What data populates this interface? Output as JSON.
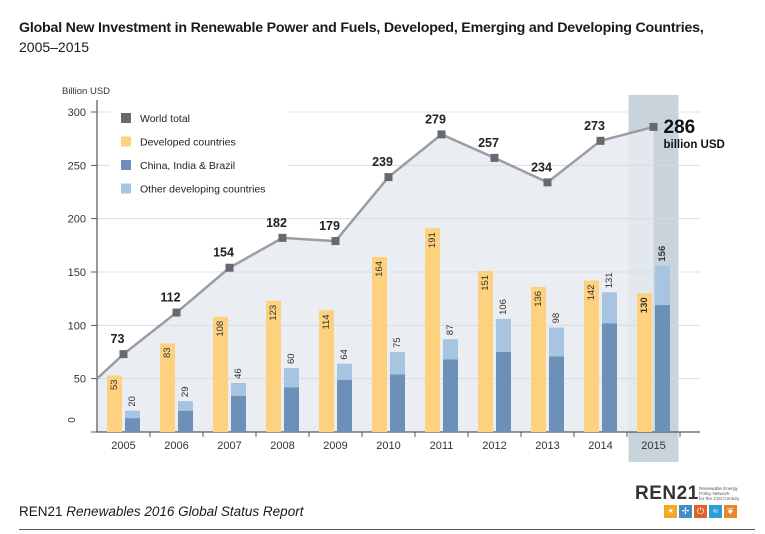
{
  "title": "Global New Investment in Renewable Power and Fuels, Developed, Emerging and Developing Countries,",
  "subtitle": "2005–2015",
  "source": {
    "org": "REN21",
    "report": "Renewables 2016 Global Status Report"
  },
  "logo": {
    "name": "REN21",
    "tagline": [
      "Renewable Energy",
      "Policy Network",
      "for the 21st Century"
    ],
    "icons": [
      {
        "name": "sun-icon",
        "glyph": "☀",
        "color": "#f5a623"
      },
      {
        "name": "wind-icon",
        "glyph": "✢",
        "color": "#3f8fc6"
      },
      {
        "name": "power-icon",
        "glyph": "⏻",
        "color": "#e0612b"
      },
      {
        "name": "water-icon",
        "glyph": "≈",
        "color": "#2aa0d6"
      },
      {
        "name": "leaf-icon",
        "glyph": "❦",
        "color": "#e8862c"
      }
    ]
  },
  "chart_data": {
    "type": "bar",
    "ylabel": "Billion USD",
    "ylim": [
      0,
      300
    ],
    "yticks": [
      0,
      50,
      100,
      150,
      200,
      250,
      300
    ],
    "ytick_labels": [
      "0",
      "50",
      "100",
      "150",
      "200",
      "250",
      "300"
    ],
    "categories": [
      "2005",
      "2006",
      "2007",
      "2008",
      "2009",
      "2010",
      "2011",
      "2012",
      "2013",
      "2014",
      "2015"
    ],
    "highlight_category": "2015",
    "legend_position": "top-left",
    "series": [
      {
        "name": "World total",
        "type": "line",
        "color": "#666a70",
        "values": [
          73,
          112,
          154,
          182,
          179,
          239,
          279,
          257,
          234,
          273,
          286
        ],
        "labels": [
          "73",
          "112",
          "154",
          "182",
          "179",
          "239",
          "279",
          "257",
          "234",
          "273",
          "286"
        ]
      },
      {
        "name": "Developed countries",
        "type": "bar",
        "color": "#fdd17d",
        "values": [
          53,
          83,
          108,
          123,
          114,
          164,
          191,
          151,
          136,
          142,
          130
        ],
        "labels": [
          "53",
          "83",
          "108",
          "123",
          "114",
          "164",
          "191",
          "151",
          "136",
          "142",
          "130"
        ]
      },
      {
        "name": "China, India & Brazil",
        "type": "stacked-bar",
        "color": "#6c90b8",
        "values": [
          13,
          20,
          34,
          42,
          49,
          54,
          68,
          75,
          71,
          102,
          119
        ]
      },
      {
        "name": "Other developing countries",
        "type": "stacked-bar",
        "color": "#a7c4e0",
        "values": [
          7,
          9,
          12,
          18,
          15,
          21,
          19,
          31,
          27,
          29,
          37
        ]
      }
    ],
    "developing_total_labels": [
      "20",
      "29",
      "46",
      "60",
      "64",
      "75",
      "87",
      "106",
      "98",
      "131",
      "156"
    ],
    "last_point_unit": "billion USD",
    "colors": {
      "area": "#e6ebf0",
      "highlight_band": "#c9d3dc",
      "axis": "#333333"
    }
  }
}
